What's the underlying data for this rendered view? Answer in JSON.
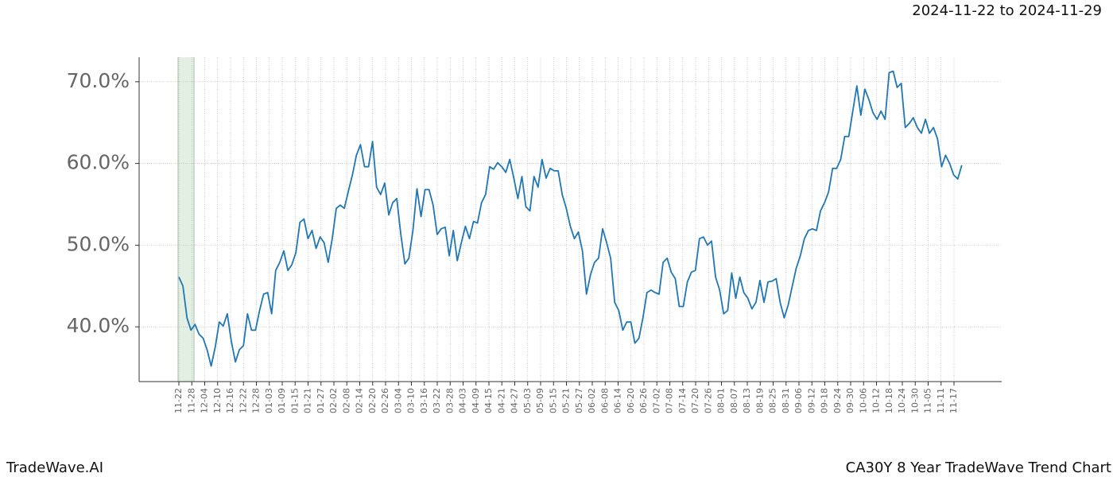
{
  "chart_data": {
    "type": "line",
    "title": "CA30Y 8 Year TradeWave Trend Chart",
    "subtitle": "2024-11-22 to 2024-11-29",
    "source": "TradeWave.AI",
    "color": "#1f77b4",
    "highlight_color": "#e3efe3",
    "grid": true,
    "ylim": [
      33.3,
      73.0
    ],
    "yticks": [
      {
        "value": 40,
        "label": "40.0%"
      },
      {
        "value": 50,
        "label": "50.0%"
      },
      {
        "value": 60,
        "label": "60.0%"
      },
      {
        "value": 70,
        "label": "70.0%"
      }
    ],
    "xticks": [
      "11-22",
      "11-28",
      "12-04",
      "12-10",
      "12-16",
      "12-22",
      "12-28",
      "01-03",
      "01-09",
      "01-15",
      "01-21",
      "01-27",
      "02-02",
      "02-08",
      "02-14",
      "02-20",
      "02-26",
      "03-04",
      "03-10",
      "03-16",
      "03-22",
      "03-28",
      "04-03",
      "04-09",
      "04-15",
      "04-21",
      "04-27",
      "05-03",
      "05-09",
      "05-15",
      "05-21",
      "05-27",
      "06-02",
      "06-08",
      "06-14",
      "06-20",
      "06-26",
      "07-02",
      "07-08",
      "07-14",
      "07-20",
      "07-26",
      "08-01",
      "08-07",
      "08-13",
      "08-19",
      "08-25",
      "08-31",
      "09-06",
      "09-12",
      "09-18",
      "09-24",
      "09-30",
      "10-06",
      "10-12",
      "10-18",
      "10-24",
      "10-30",
      "11-05",
      "11-11",
      "11-17"
    ],
    "values": [
      46.1,
      45.0,
      41.1,
      39.6,
      40.3,
      39.1,
      38.6,
      37.2,
      35.2,
      37.5,
      40.6,
      40.1,
      41.6,
      38.2,
      35.7,
      37.2,
      37.7,
      41.6,
      39.6,
      39.6,
      42.0,
      44.0,
      44.2,
      41.6,
      46.9,
      47.9,
      49.3,
      46.9,
      47.6,
      49.1,
      52.8,
      53.2,
      50.8,
      51.8,
      49.6,
      51.0,
      50.3,
      47.9,
      50.8,
      54.5,
      54.9,
      54.5,
      56.6,
      58.6,
      61.0,
      62.3,
      59.6,
      59.6,
      62.7,
      57.1,
      56.2,
      57.6,
      53.7,
      55.2,
      55.7,
      51.3,
      47.7,
      48.4,
      51.8,
      56.9,
      53.5,
      56.8,
      56.8,
      54.9,
      51.3,
      52.0,
      52.2,
      48.7,
      51.8,
      48.1,
      50.3,
      52.3,
      50.8,
      52.9,
      52.7,
      55.2,
      56.2,
      59.6,
      59.3,
      60.1,
      59.6,
      58.9,
      60.5,
      58.2,
      55.7,
      58.4,
      54.7,
      54.2,
      58.4,
      57.1,
      60.5,
      58.2,
      59.4,
      59.1,
      59.1,
      56.2,
      54.5,
      52.3,
      50.8,
      51.6,
      49.3,
      44.0,
      46.4,
      47.9,
      48.4,
      52.0,
      50.3,
      48.4,
      43.0,
      42.0,
      39.6,
      40.6,
      40.6,
      38.0,
      38.6,
      41.1,
      44.2,
      44.5,
      44.2,
      44.0,
      47.9,
      48.4,
      46.7,
      45.9,
      42.5,
      42.5,
      45.5,
      46.7,
      46.9,
      50.8,
      51.0,
      50.0,
      50.5,
      46.1,
      44.5,
      41.6,
      42.0,
      46.6,
      43.5,
      46.1,
      44.2,
      43.5,
      42.2,
      43.0,
      45.7,
      43.0,
      45.5,
      45.6,
      45.9,
      43.0,
      41.1,
      42.7,
      45.0,
      47.2,
      48.7,
      50.8,
      51.8,
      52.0,
      51.8,
      54.2,
      55.2,
      56.5,
      59.4,
      59.4,
      60.5,
      63.3,
      63.3,
      66.4,
      69.5,
      65.9,
      69.1,
      67.8,
      66.2,
      65.4,
      66.4,
      65.4,
      71.1,
      71.3,
      69.3,
      69.8,
      64.4,
      64.9,
      65.6,
      64.4,
      63.7,
      65.4,
      63.7,
      64.4,
      63.0,
      59.6,
      61.0,
      60.0,
      58.6,
      58.1,
      59.8
    ]
  }
}
